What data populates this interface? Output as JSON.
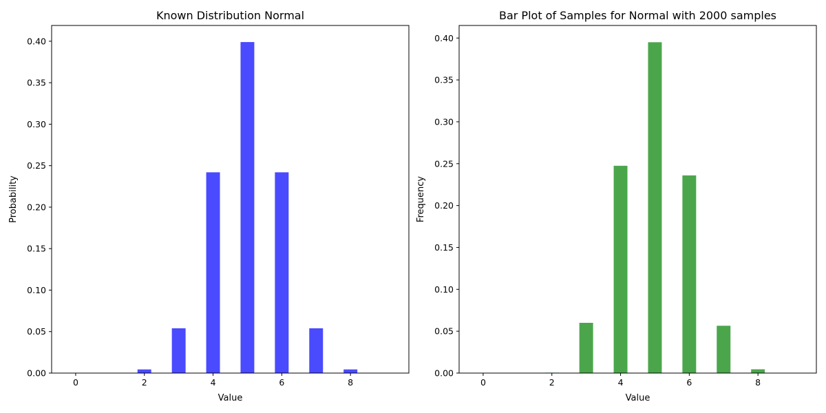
{
  "chart_data": [
    {
      "type": "bar",
      "title": "Known Distribution Normal",
      "xlabel": "Value",
      "ylabel": "Probability",
      "x": [
        0,
        1,
        2,
        3,
        4,
        5,
        6,
        7,
        8,
        9
      ],
      "values": [
        0.0,
        0.0,
        0.0044,
        0.054,
        0.242,
        0.399,
        0.242,
        0.054,
        0.0044,
        0.0
      ],
      "xticks": [
        0,
        2,
        4,
        6,
        8
      ],
      "xlim": [
        -0.7,
        9.7
      ],
      "yticks": [
        0.0,
        0.05,
        0.1,
        0.15,
        0.2,
        0.25,
        0.3,
        0.35,
        0.4
      ],
      "ytick_labels": [
        "0.00",
        "0.05",
        "0.10",
        "0.15",
        "0.20",
        "0.25",
        "0.30",
        "0.35",
        "0.40"
      ],
      "ylim": [
        0,
        0.419
      ],
      "bar_width": 0.4,
      "color": "#4a4aff",
      "grid": false
    },
    {
      "type": "bar",
      "title": "Bar Plot of Samples for Normal with 2000 samples",
      "xlabel": "Value",
      "ylabel": "Frequency",
      "x": [
        0,
        1,
        2,
        3,
        4,
        5,
        6,
        7,
        8,
        9
      ],
      "values": [
        0.0,
        0.0,
        0.0005,
        0.06,
        0.2475,
        0.395,
        0.236,
        0.0565,
        0.0045,
        0.0
      ],
      "xticks": [
        0,
        2,
        4,
        6,
        8
      ],
      "xlim": [
        -0.7,
        9.7
      ],
      "yticks": [
        0.0,
        0.05,
        0.1,
        0.15,
        0.2,
        0.25,
        0.3,
        0.35,
        0.4
      ],
      "ytick_labels": [
        "0.00",
        "0.05",
        "0.10",
        "0.15",
        "0.20",
        "0.25",
        "0.30",
        "0.35",
        "0.40"
      ],
      "ylim": [
        0,
        0.415
      ],
      "bar_width": 0.4,
      "color": "#4ba64b",
      "grid": false
    }
  ]
}
